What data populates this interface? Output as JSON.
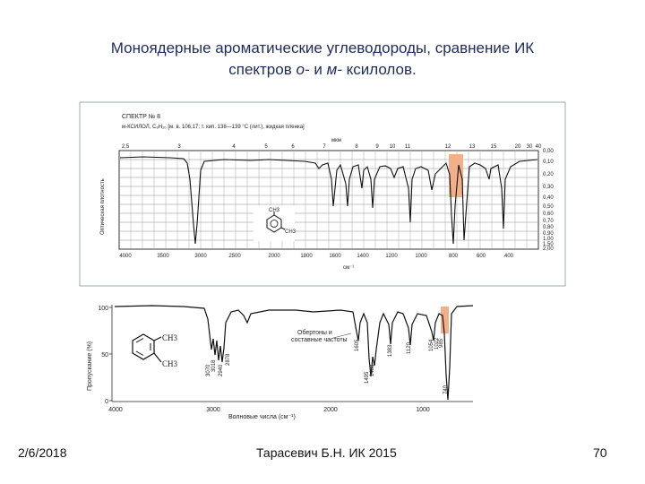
{
  "slide": {
    "title_line1": "Моноядерные ароматические углеводороды, сравнение ИК",
    "title_line2_pre": "спектров ",
    "title_o": "о-",
    "title_mid": " и ",
    "title_m": "м-",
    "title_post": " ксилолов."
  },
  "spectrum_m": {
    "header_line1": "СПЕКТР № 8",
    "header_line2": "м-КСИЛОЛ, C₈H₁₀ [м. в. 106,17; т. кип. 138—139 °C (лит.), жидкая пленка]",
    "top_unit": "мкм",
    "top_ticks": [
      "2,5",
      "3",
      "4",
      "5",
      "6",
      "7",
      "8",
      "9",
      "10",
      "11",
      "12",
      "13",
      "15",
      "20",
      "30",
      "40"
    ],
    "bottom_ticks": [
      "4000",
      "3500",
      "3000",
      "2500",
      "2000",
      "1800",
      "1600",
      "1400",
      "1200",
      "1000",
      "800",
      "600",
      "400"
    ],
    "bottom_unit": "см⁻¹",
    "left_axis_label": "Оптическая плотность",
    "right_ticks": [
      "0,00",
      "0,10",
      "0,20",
      "0,30",
      "0,40",
      "0,50",
      "0,60",
      "0,70",
      "0,80",
      "0,90",
      "1,00",
      "1,50",
      "2,00"
    ],
    "molecule_ch3_top": "CH3",
    "molecule_ch3_side": "CH3",
    "highlight_color": "#f2b08a"
  },
  "spectrum_o": {
    "y_axis_label": "Пропускание (%)",
    "y_ticks": [
      "100",
      "50",
      "0"
    ],
    "x_ticks": [
      "4000",
      "3000",
      "2000",
      "1000"
    ],
    "x_axis_label": "Волновые числа (см⁻¹)",
    "overtone_label_line1": "Обертоны и",
    "overtone_label_line2": "составные частоты",
    "ch3_top": "CH3",
    "ch3_bottom": "CH3",
    "peak_labels": [
      "3070",
      "3018",
      "2940",
      "2878",
      "1605",
      "1495",
      "1468",
      "1383",
      "1120",
      "1054",
      "1022",
      "985",
      "740"
    ],
    "highlight_color": "#f2b08a"
  },
  "footer": {
    "date": "2/6/2018",
    "author": "Тарасевич Б.Н.  ИК 2015",
    "page": "70"
  }
}
